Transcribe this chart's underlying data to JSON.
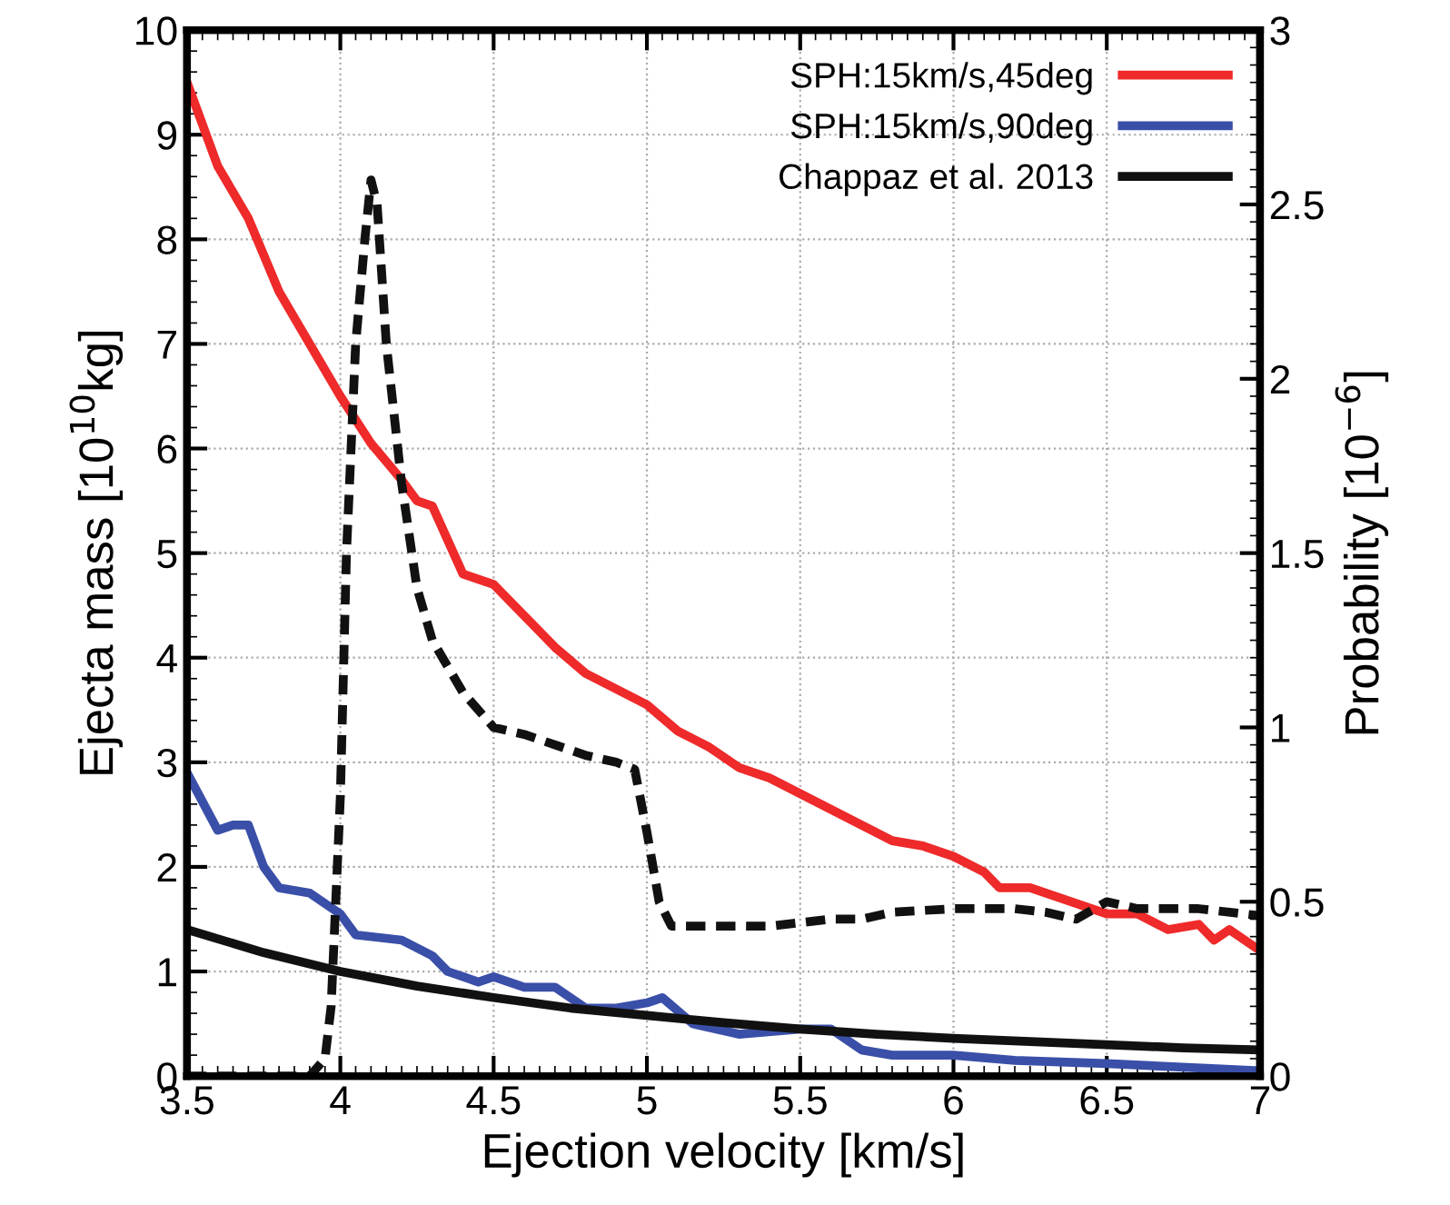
{
  "chart_data": {
    "type": "line",
    "xlabel": "Ejection velocity [km/s]",
    "ylabel": "Ejecta mass [10$^{10}$kg]",
    "y2label": "Probability [10$^{−6}$]",
    "xlim": [
      3.5,
      7
    ],
    "xticks": [
      3.5,
      4,
      4.5,
      5,
      5.5,
      6,
      6.5,
      7
    ],
    "ylim": [
      0,
      10
    ],
    "yticks": [
      0,
      1,
      2,
      3,
      4,
      5,
      6,
      7,
      8,
      9,
      10
    ],
    "y2lim": [
      0,
      3
    ],
    "y2ticks": [
      0,
      0.5,
      1,
      1.5,
      2,
      2.5,
      3
    ],
    "grid": true,
    "legend": "top right",
    "line_style": "solid",
    "marker": "none",
    "series": [
      {
        "name": "SPH:15km/s,45deg",
        "color": "#ee2a2a",
        "x": [
          3.5,
          3.6,
          3.7,
          3.8,
          3.9,
          4.0,
          4.1,
          4.2,
          4.25,
          4.3,
          4.4,
          4.5,
          4.6,
          4.7,
          4.8,
          4.9,
          5.0,
          5.1,
          5.2,
          5.3,
          5.4,
          5.5,
          5.6,
          5.7,
          5.8,
          5.9,
          6.0,
          6.1,
          6.15,
          6.25,
          6.35,
          6.45,
          6.5,
          6.6,
          6.7,
          6.8,
          6.85,
          6.9,
          7.0
        ],
        "values": [
          9.5,
          8.7,
          8.2,
          7.5,
          7.0,
          6.5,
          6.05,
          5.7,
          5.5,
          5.45,
          4.8,
          4.7,
          4.4,
          4.1,
          3.85,
          3.7,
          3.55,
          3.3,
          3.15,
          2.95,
          2.85,
          2.7,
          2.55,
          2.4,
          2.25,
          2.2,
          2.1,
          1.95,
          1.8,
          1.8,
          1.7,
          1.6,
          1.55,
          1.55,
          1.4,
          1.45,
          1.3,
          1.4,
          1.2
        ]
      },
      {
        "name": "SPH:15km/s,90deg",
        "color": "#3a4fa8",
        "x": [
          3.5,
          3.6,
          3.65,
          3.7,
          3.75,
          3.8,
          3.9,
          4.0,
          4.05,
          4.2,
          4.3,
          4.35,
          4.45,
          4.5,
          4.6,
          4.7,
          4.8,
          4.9,
          5.0,
          5.05,
          5.15,
          5.3,
          5.5,
          5.6,
          5.7,
          5.8,
          6.0,
          6.2,
          6.5,
          7.0
        ],
        "values": [
          2.9,
          2.35,
          2.4,
          2.4,
          2.0,
          1.8,
          1.75,
          1.55,
          1.35,
          1.3,
          1.15,
          1.0,
          0.9,
          0.95,
          0.85,
          0.85,
          0.65,
          0.65,
          0.7,
          0.75,
          0.5,
          0.4,
          0.45,
          0.45,
          0.25,
          0.2,
          0.2,
          0.15,
          0.12,
          0.05
        ]
      },
      {
        "name": "Chappaz et al. 2013",
        "color": "#111111",
        "x": [
          3.5,
          3.75,
          4.0,
          4.25,
          4.5,
          4.75,
          5.0,
          5.25,
          5.5,
          5.75,
          6.0,
          6.25,
          6.5,
          6.75,
          7.0
        ],
        "values": [
          1.4,
          1.18,
          1.0,
          0.86,
          0.75,
          0.65,
          0.58,
          0.51,
          0.45,
          0.4,
          0.36,
          0.33,
          0.3,
          0.27,
          0.25
        ]
      },
      {
        "color": "#111111",
        "axis": "y2",
        "line_style": "dashed",
        "x": [
          3.5,
          3.9,
          3.95,
          3.97,
          4.0,
          4.02,
          4.05,
          4.08,
          4.1,
          4.12,
          4.15,
          4.2,
          4.25,
          4.3,
          4.4,
          4.5,
          4.6,
          4.7,
          4.8,
          4.9,
          4.96,
          5.0,
          5.04,
          5.08,
          5.2,
          5.4,
          5.6,
          5.7,
          5.8,
          6.0,
          6.2,
          6.3,
          6.4,
          6.5,
          6.6,
          6.8,
          7.0
        ],
        "values": [
          0,
          0,
          0.05,
          0.2,
          0.8,
          1.5,
          2.1,
          2.4,
          2.57,
          2.5,
          2.1,
          1.7,
          1.4,
          1.25,
          1.1,
          1.0,
          0.98,
          0.95,
          0.92,
          0.9,
          0.88,
          0.7,
          0.5,
          0.43,
          0.43,
          0.43,
          0.45,
          0.45,
          0.47,
          0.48,
          0.48,
          0.47,
          0.45,
          0.5,
          0.48,
          0.48,
          0.46
        ]
      }
    ]
  }
}
